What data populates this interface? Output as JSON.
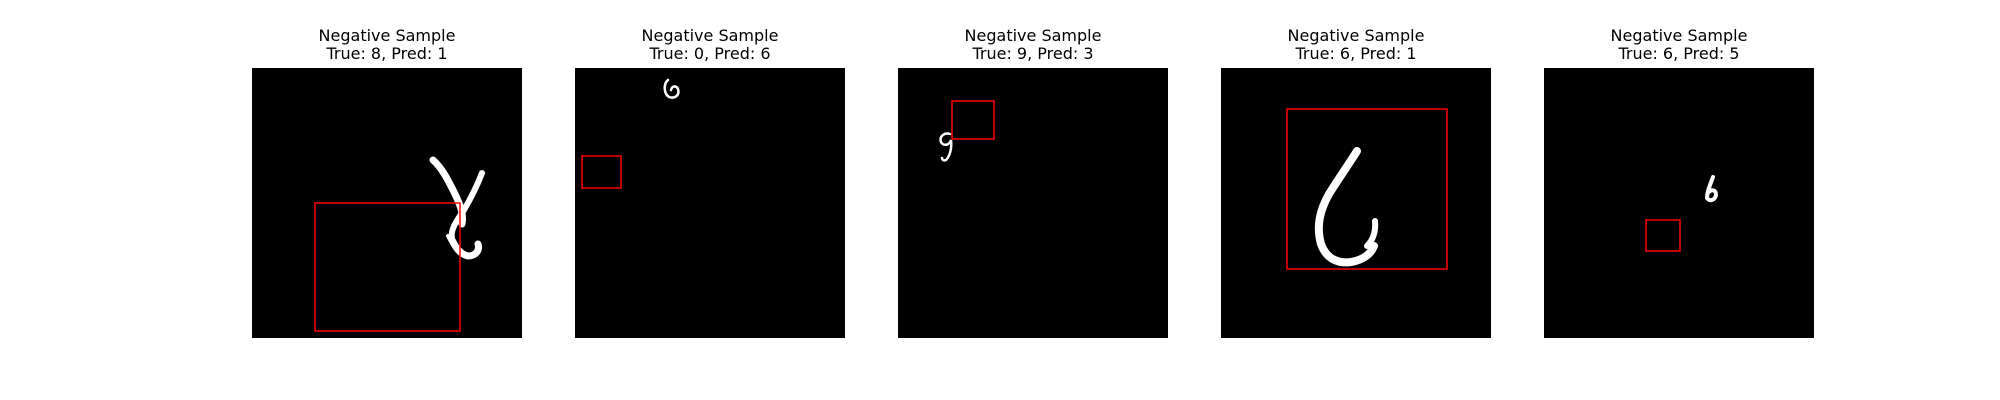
{
  "panels": [
    {
      "title": "Negative Sample",
      "subtitle": "True: 8, Pred: 1",
      "digit_true": 8,
      "digit_pred": 1,
      "box_color": "#ff0000"
    },
    {
      "title": "Negative Sample",
      "subtitle": "True: 0, Pred: 6",
      "digit_true": 0,
      "digit_pred": 6,
      "box_color": "#ff0000"
    },
    {
      "title": "Negative Sample",
      "subtitle": "True: 9, Pred: 3",
      "digit_true": 9,
      "digit_pred": 3,
      "box_color": "#ff0000"
    },
    {
      "title": "Negative Sample",
      "subtitle": "True: 6, Pred: 1",
      "digit_true": 6,
      "digit_pred": 1,
      "box_color": "#ff0000"
    },
    {
      "title": "Negative Sample",
      "subtitle": "True: 6, Pred: 5",
      "digit_true": 6,
      "digit_pred": 5,
      "box_color": "#ff0000"
    }
  ]
}
